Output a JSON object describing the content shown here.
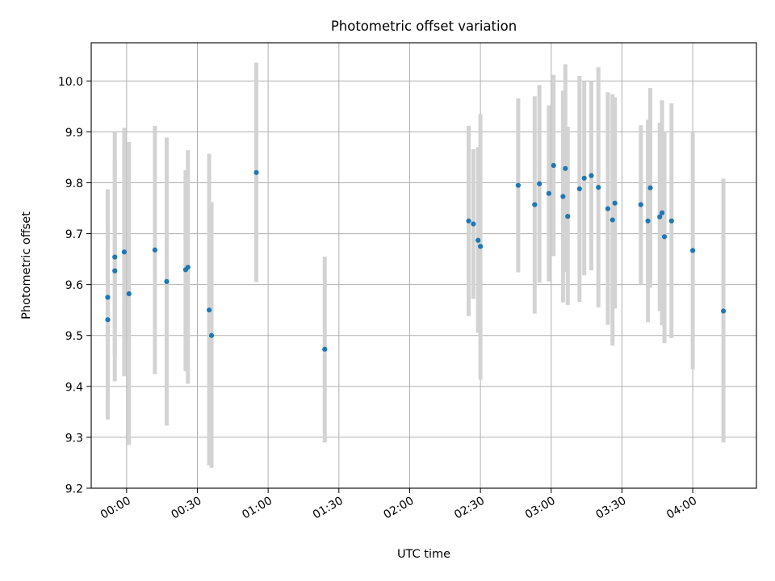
{
  "chart_data": {
    "type": "scatter",
    "title": "Photometric offset variation",
    "xlabel": "UTC time",
    "ylabel": "Photometric offset",
    "ylim": [
      9.2,
      10.075
    ],
    "xlim": [
      "23:45",
      "04:27"
    ],
    "xticks": [
      "00:00",
      "00:30",
      "01:00",
      "01:30",
      "02:00",
      "02:30",
      "03:00",
      "03:30",
      "04:00"
    ],
    "yticks": [
      "9.2",
      "9.3",
      "9.4",
      "9.5",
      "9.6",
      "9.7",
      "9.8",
      "9.9",
      "10.0"
    ],
    "grid": true,
    "colors": {
      "marker": "#1f77b4",
      "errorbar": "#d3d3d3",
      "grid": "#b0b0b0"
    },
    "series": [
      {
        "points": [
          {
            "x": "23:52",
            "y": 9.575,
            "lo": 9.365,
            "hi": 9.787
          },
          {
            "x": "23:52",
            "y": 9.531,
            "lo": 9.335,
            "hi": 9.728
          },
          {
            "x": "23:55",
            "y": 9.654,
            "lo": 9.46,
            "hi": 9.845
          },
          {
            "x": "23:55",
            "y": 9.627,
            "lo": 9.41,
            "hi": 9.9
          },
          {
            "x": "23:59",
            "y": 9.664,
            "lo": 9.42,
            "hi": 9.908
          },
          {
            "x": "00:01",
            "y": 9.582,
            "lo": 9.285,
            "hi": 9.88
          },
          {
            "x": "00:12",
            "y": 9.668,
            "lo": 9.424,
            "hi": 9.912
          },
          {
            "x": "00:17",
            "y": 9.606,
            "lo": 9.323,
            "hi": 9.889
          },
          {
            "x": "00:25",
            "y": 9.629,
            "lo": 9.43,
            "hi": 9.825
          },
          {
            "x": "00:26",
            "y": 9.634,
            "lo": 9.405,
            "hi": 9.864
          },
          {
            "x": "00:35",
            "y": 9.55,
            "lo": 9.245,
            "hi": 9.857
          },
          {
            "x": "00:36",
            "y": 9.5,
            "lo": 9.24,
            "hi": 9.762
          },
          {
            "x": "00:55",
            "y": 9.82,
            "lo": 9.605,
            "hi": 10.036
          },
          {
            "x": "01:24",
            "y": 9.473,
            "lo": 9.29,
            "hi": 9.655
          },
          {
            "x": "02:25",
            "y": 9.725,
            "lo": 9.538,
            "hi": 9.912
          },
          {
            "x": "02:27",
            "y": 9.719,
            "lo": 9.572,
            "hi": 9.866
          },
          {
            "x": "02:29",
            "y": 9.687,
            "lo": 9.505,
            "hi": 9.87
          },
          {
            "x": "02:30",
            "y": 9.675,
            "lo": 9.413,
            "hi": 9.935
          },
          {
            "x": "02:46",
            "y": 9.795,
            "lo": 9.624,
            "hi": 9.966
          },
          {
            "x": "02:53",
            "y": 9.757,
            "lo": 9.543,
            "hi": 9.97
          },
          {
            "x": "02:55",
            "y": 9.798,
            "lo": 9.604,
            "hi": 9.992
          },
          {
            "x": "02:59",
            "y": 9.779,
            "lo": 9.606,
            "hi": 9.952
          },
          {
            "x": "03:01",
            "y": 9.834,
            "lo": 9.656,
            "hi": 10.012
          },
          {
            "x": "03:05",
            "y": 9.773,
            "lo": 9.565,
            "hi": 9.981
          },
          {
            "x": "03:06",
            "y": 9.828,
            "lo": 9.625,
            "hi": 10.033
          },
          {
            "x": "03:07",
            "y": 9.734,
            "lo": 9.56,
            "hi": 9.91
          },
          {
            "x": "03:12",
            "y": 9.788,
            "lo": 9.566,
            "hi": 10.01
          },
          {
            "x": "03:14",
            "y": 9.809,
            "lo": 9.618,
            "hi": 10.0
          },
          {
            "x": "03:17",
            "y": 9.814,
            "lo": 9.628,
            "hi": 10.0
          },
          {
            "x": "03:20",
            "y": 9.791,
            "lo": 9.555,
            "hi": 10.027
          },
          {
            "x": "03:24",
            "y": 9.749,
            "lo": 9.521,
            "hi": 9.978
          },
          {
            "x": "03:26",
            "y": 9.727,
            "lo": 9.48,
            "hi": 9.974
          },
          {
            "x": "03:27",
            "y": 9.76,
            "lo": 9.553,
            "hi": 9.968
          },
          {
            "x": "03:38",
            "y": 9.757,
            "lo": 9.6,
            "hi": 9.913
          },
          {
            "x": "03:41",
            "y": 9.725,
            "lo": 9.526,
            "hi": 9.924
          },
          {
            "x": "03:42",
            "y": 9.79,
            "lo": 9.594,
            "hi": 9.986
          },
          {
            "x": "03:46",
            "y": 9.733,
            "lo": 9.548,
            "hi": 9.918
          },
          {
            "x": "03:47",
            "y": 9.741,
            "lo": 9.52,
            "hi": 9.962
          },
          {
            "x": "03:48",
            "y": 9.694,
            "lo": 9.485,
            "hi": 9.9
          },
          {
            "x": "03:51",
            "y": 9.725,
            "lo": 9.495,
            "hi": 9.956
          },
          {
            "x": "04:00",
            "y": 9.667,
            "lo": 9.434,
            "hi": 9.9
          },
          {
            "x": "04:13",
            "y": 9.548,
            "lo": 9.29,
            "hi": 9.808
          }
        ]
      }
    ]
  }
}
